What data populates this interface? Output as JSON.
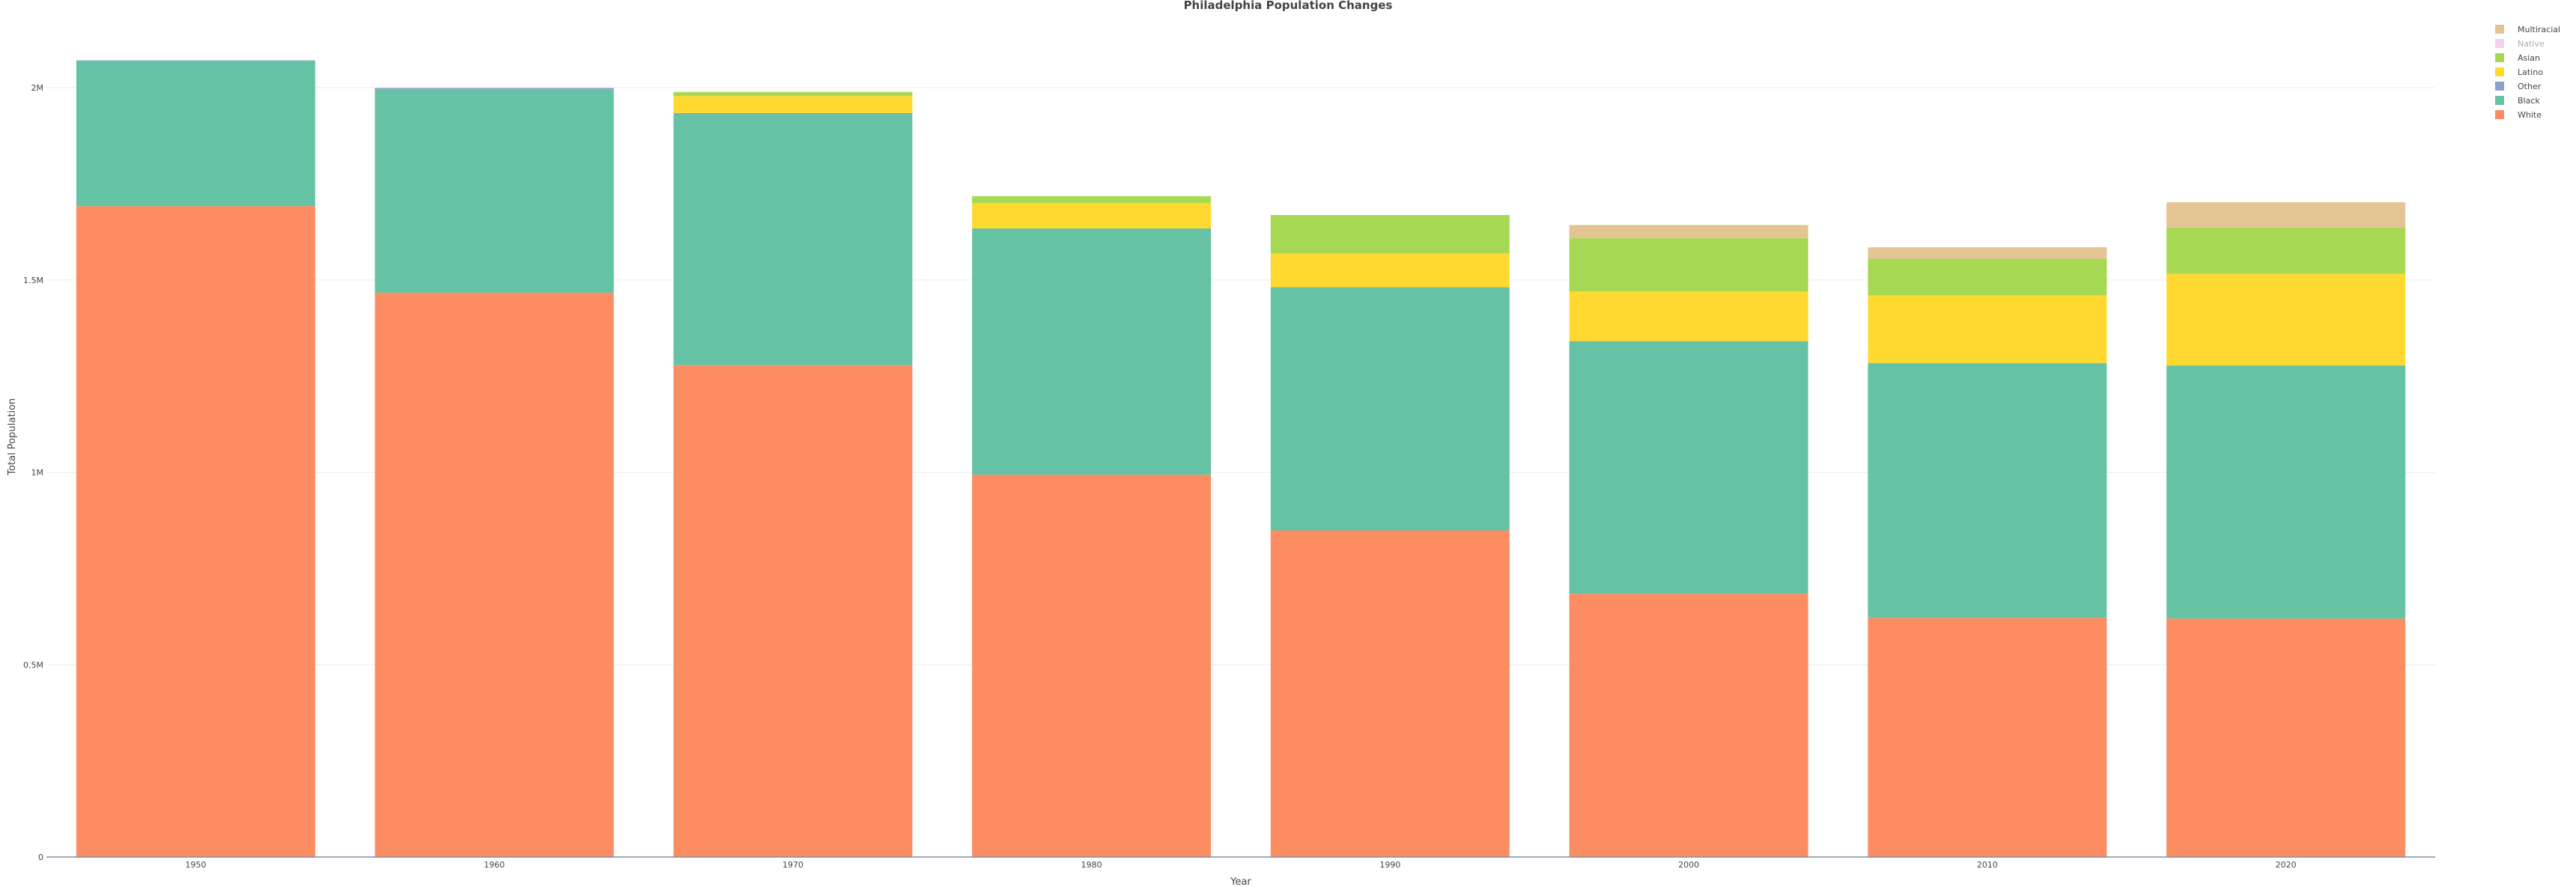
{
  "chart_data": {
    "type": "bar",
    "stacked": true,
    "title": "Philadelphia Population Changes",
    "xlabel": "Year",
    "ylabel": "Total Population",
    "categories": [
      "1950",
      "1960",
      "1970",
      "1980",
      "1990",
      "2000",
      "2010",
      "2020"
    ],
    "ylim": [
      0,
      2150000
    ],
    "yticks": [
      {
        "value": 0,
        "label": "0"
      },
      {
        "value": 500000,
        "label": "0.5M"
      },
      {
        "value": 1000000,
        "label": "1M"
      },
      {
        "value": 1500000,
        "label": "1.5M"
      },
      {
        "value": 2000000,
        "label": "2M"
      }
    ],
    "grid": true,
    "legend_position": "top-right",
    "series": [
      {
        "name": "White",
        "color": "#fc8d62",
        "values": [
          1692000,
          1467000,
          1279000,
          994000,
          849000,
          684000,
          622000,
          620000
        ]
      },
      {
        "name": "Black",
        "color": "#66c2a5",
        "values": [
          378000,
          529000,
          652000,
          640000,
          632000,
          657000,
          662000,
          658000
        ]
      },
      {
        "name": "Other",
        "color": "#8da0cb",
        "values": [
          1000,
          3000,
          3000,
          0,
          0,
          0,
          0,
          0
        ]
      },
      {
        "name": "Latino",
        "color": "#ffd92f",
        "values": [
          0,
          0,
          44000,
          66000,
          88000,
          129000,
          176000,
          238000
        ]
      },
      {
        "name": "Asian",
        "color": "#a6d854",
        "values": [
          0,
          0,
          11000,
          18000,
          100000,
          139000,
          95000,
          120000
        ]
      },
      {
        "name": "Native",
        "color": "#e78ac3",
        "values": [
          0,
          0,
          0,
          0,
          0,
          0,
          0,
          0
        ],
        "legend_muted": true
      },
      {
        "name": "Multiracial",
        "color": "#e5c494",
        "values": [
          0,
          0,
          0,
          0,
          0,
          34000,
          30000,
          66000
        ]
      }
    ]
  }
}
